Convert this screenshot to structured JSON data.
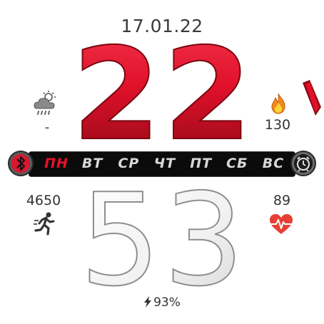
{
  "date": "17.01.22",
  "time": {
    "hours": "22",
    "minutes": "53"
  },
  "weather": {
    "icon": "cloud-sun-rain-icon",
    "temperature": "-"
  },
  "calories": {
    "icon": "flame-icon",
    "value": "130"
  },
  "weekdays": {
    "items": [
      "ПН",
      "ВТ",
      "СР",
      "ЧТ",
      "ПТ",
      "СБ",
      "ВС"
    ],
    "active_index": 0
  },
  "steps": {
    "icon": "running-person-icon",
    "value": "4650"
  },
  "heart_rate": {
    "icon": "heart-pulse-icon",
    "value": "89"
  },
  "battery": {
    "icon": "lightning-bolt-icon",
    "value": "93%"
  },
  "colors": {
    "accent": "#e8102a",
    "hours_gradient_top": "#f0203a",
    "hours_gradient_bottom": "#8f0a14",
    "minutes_fill": "#f4f4f4",
    "minutes_outline": "#9a9a9a",
    "bar_background": "#0b0b0b"
  }
}
